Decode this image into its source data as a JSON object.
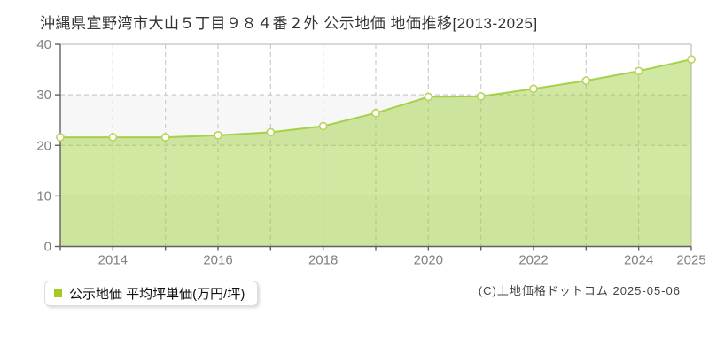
{
  "title": "沖縄県宜野湾市大山５丁目９８４番２外 公示地価 地価推移[2013-2025]",
  "legend": {
    "label": "公示地価 平均坪単価(万円/坪)",
    "marker_color": "#a6c826"
  },
  "copyright": "(C)土地価格ドットコム 2025-05-06",
  "chart_data": {
    "type": "area",
    "title": "沖縄県宜野湾市大山５丁目９８４番２外 公示地価 地価推移[2013-2025]",
    "x": [
      2013,
      2014,
      2015,
      2016,
      2017,
      2018,
      2019,
      2020,
      2021,
      2022,
      2023,
      2024,
      2025
    ],
    "series": [
      {
        "name": "公示地価 平均坪単価(万円/坪)",
        "values": [
          21.6,
          21.6,
          21.6,
          22.0,
          22.6,
          23.8,
          26.4,
          29.6,
          29.7,
          31.2,
          32.8,
          34.7,
          37.0
        ]
      }
    ],
    "xlabel": "",
    "ylabel": "",
    "ylim": [
      0,
      40
    ],
    "yticks": [
      0,
      10,
      20,
      30,
      40
    ],
    "xtick_labels": [
      "2014",
      "2016",
      "2018",
      "2020",
      "2022",
      "2024",
      "2025"
    ],
    "grid": "dashed",
    "legend_position": "bottom-left",
    "colors": {
      "line": "rgba(154,205,50,0.85)",
      "fill": "rgba(154,205,50,0.45)",
      "marker_fill": "#ffffff",
      "marker_stroke": "#b9d35b",
      "band": "#f7f7f7",
      "grid": "#cccccc",
      "border": "#cccccc",
      "axis": "#606060",
      "tick_label": "#808080"
    }
  }
}
